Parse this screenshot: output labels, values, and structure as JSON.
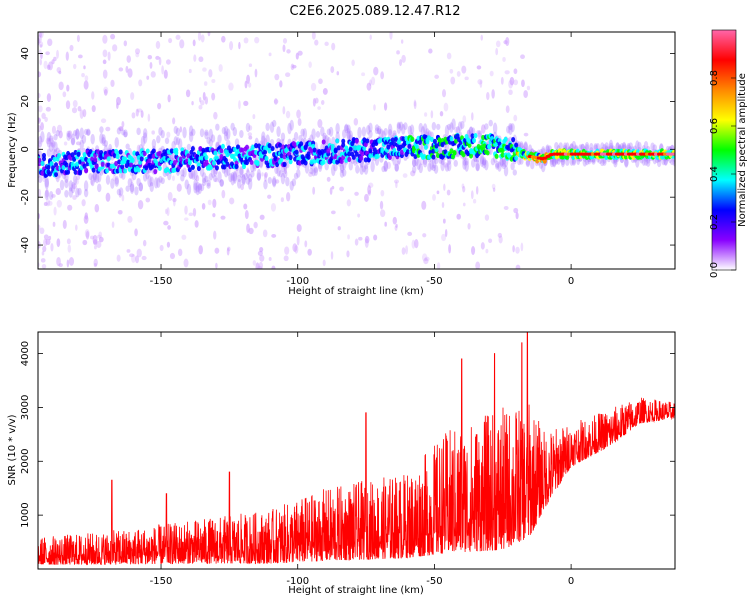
{
  "title": "C2E6.2025.089.12.47.R12",
  "chart_data": [
    {
      "type": "heatmap",
      "xlabel": "Height of straight line (km)",
      "ylabel": "Frequency (Hz)",
      "xlim": [
        -195,
        38
      ],
      "ylim": [
        -50,
        49
      ],
      "x_ticks": [
        -150,
        -100,
        -50,
        0
      ],
      "y_ticks": [
        40,
        20,
        0,
        -20,
        -40
      ],
      "colorbar": {
        "label": "Normalized spectral amplitude",
        "range": [
          0,
          1
        ],
        "ticks": [
          "0.0",
          "0.2",
          "0.4",
          "0.6",
          "0.8"
        ],
        "colormap": [
          "#ffffff",
          "#8800ff",
          "#0000ff",
          "#00ffff",
          "#00ff00",
          "#ffff00",
          "#ff8800",
          "#ff0000",
          "#ff66aa"
        ]
      },
      "ridge": [
        {
          "x": -195,
          "y": -7
        },
        {
          "x": -175,
          "y": -5
        },
        {
          "x": -150,
          "y": -5
        },
        {
          "x": -125,
          "y": -3
        },
        {
          "x": -100,
          "y": -2
        },
        {
          "x": -75,
          "y": 0
        },
        {
          "x": -50,
          "y": 1
        },
        {
          "x": -30,
          "y": 2
        },
        {
          "x": -22,
          "y": 0
        },
        {
          "x": -15,
          "y": -3
        },
        {
          "x": -10,
          "y": -4
        },
        {
          "x": -7,
          "y": -2
        },
        {
          "x": 0,
          "y": -2
        },
        {
          "x": 20,
          "y": -2
        },
        {
          "x": 38,
          "y": -2
        }
      ],
      "grid": false
    },
    {
      "type": "line",
      "xlabel": "Height of straight line (km)",
      "ylabel": "SNR (10 * v/v)",
      "xlim": [
        -195,
        38
      ],
      "ylim": [
        0,
        4400
      ],
      "x_ticks": [
        -150,
        -100,
        -50,
        0
      ],
      "y_ticks": [
        1000,
        2000,
        3000,
        4000
      ],
      "series": [
        {
          "color": "#ff0000",
          "trend": [
            {
              "x": -195,
              "lo": 80,
              "hi": 600
            },
            {
              "x": -170,
              "lo": 80,
              "hi": 700
            },
            {
              "x": -140,
              "lo": 100,
              "hi": 900
            },
            {
              "x": -110,
              "lo": 100,
              "hi": 1100
            },
            {
              "x": -90,
              "lo": 150,
              "hi": 1500
            },
            {
              "x": -60,
              "lo": 200,
              "hi": 1800
            },
            {
              "x": -45,
              "lo": 300,
              "hi": 2600
            },
            {
              "x": -25,
              "lo": 350,
              "hi": 3000
            },
            {
              "x": -15,
              "lo": 600,
              "hi": 3100
            },
            {
              "x": -10,
              "lo": 1100,
              "hi": 2600
            },
            {
              "x": 0,
              "lo": 1900,
              "hi": 2700
            },
            {
              "x": 15,
              "lo": 2300,
              "hi": 3000
            },
            {
              "x": 25,
              "lo": 2700,
              "hi": 3200
            },
            {
              "x": 38,
              "lo": 2800,
              "hi": 3100
            }
          ],
          "peaks": [
            {
              "x": -168,
              "y": 1650
            },
            {
              "x": -148,
              "y": 1400
            },
            {
              "x": -125,
              "y": 1800
            },
            {
              "x": -75,
              "y": 2900
            },
            {
              "x": -40,
              "y": 3900
            },
            {
              "x": -28,
              "y": 4000
            },
            {
              "x": -18,
              "y": 4200
            },
            {
              "x": -16,
              "y": 4420
            }
          ]
        }
      ],
      "grid": false
    }
  ]
}
